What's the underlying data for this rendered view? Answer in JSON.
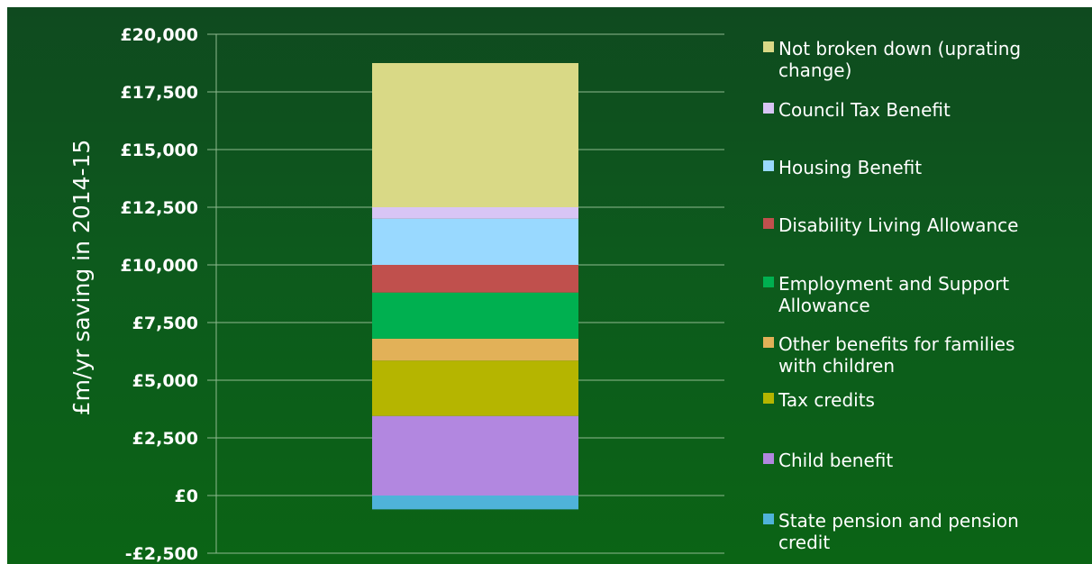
{
  "chart_data": {
    "type": "bar",
    "stacked": true,
    "title": "",
    "xlabel": "",
    "ylabel": "£m/yr saving in 2014-15",
    "ylim": [
      -2500,
      20000
    ],
    "yticks": [
      {
        "value": 20000,
        "label": "£20,000"
      },
      {
        "value": 17500,
        "label": "£17,500"
      },
      {
        "value": 15000,
        "label": "£15,000"
      },
      {
        "value": 12500,
        "label": "£12,500"
      },
      {
        "value": 10000,
        "label": "£10,000"
      },
      {
        "value": 7500,
        "label": "£7,500"
      },
      {
        "value": 5000,
        "label": "£5,000"
      },
      {
        "value": 2500,
        "label": "£2,500"
      },
      {
        "value": 0,
        "label": "£0"
      },
      {
        "value": -2500,
        "label": "-£2,500"
      }
    ],
    "grid": true,
    "legend_position": "right",
    "series": [
      {
        "name": "State pension and pension credit",
        "value": -600,
        "color": "#4fb3d9"
      },
      {
        "name": "Child benefit",
        "value": 3450,
        "color": "#b287e0"
      },
      {
        "name": "Tax credits",
        "value": 2400,
        "color": "#b5b500"
      },
      {
        "name": "Other benefits for families with children",
        "value": 950,
        "color": "#e2b158"
      },
      {
        "name": "Employment and Support Allowance",
        "value": 2000,
        "color": "#00b050"
      },
      {
        "name": "Disability Living Allowance",
        "value": 1200,
        "color": "#c0504d"
      },
      {
        "name": "Housing Benefit",
        "value": 2000,
        "color": "#99d9ff"
      },
      {
        "name": "Council Tax Benefit",
        "value": 500,
        "color": "#d8c5f5"
      },
      {
        "name": "Not broken down (uprating change)",
        "value": 6250,
        "color": "#d9d986"
      }
    ],
    "legend": [
      {
        "lines": [
          "Not broken down (uprating",
          "change)"
        ],
        "color": "#d9d986"
      },
      {
        "lines": [
          "Council Tax Benefit"
        ],
        "color": "#d8c5f5"
      },
      {
        "lines": [
          "Housing Benefit"
        ],
        "color": "#99d9ff"
      },
      {
        "lines": [
          "Disability Living Allowance"
        ],
        "color": "#c0504d"
      },
      {
        "lines": [
          "Employment and Support",
          "Allowance"
        ],
        "color": "#00b050"
      },
      {
        "lines": [
          "Other benefits for families",
          "with children"
        ],
        "color": "#e2b158"
      },
      {
        "lines": [
          "Tax credits"
        ],
        "color": "#b5b500"
      },
      {
        "lines": [
          "Child benefit"
        ],
        "color": "#b287e0"
      },
      {
        "lines": [
          "State pension and pension",
          "credit"
        ],
        "color": "#4fb3d9"
      }
    ]
  }
}
